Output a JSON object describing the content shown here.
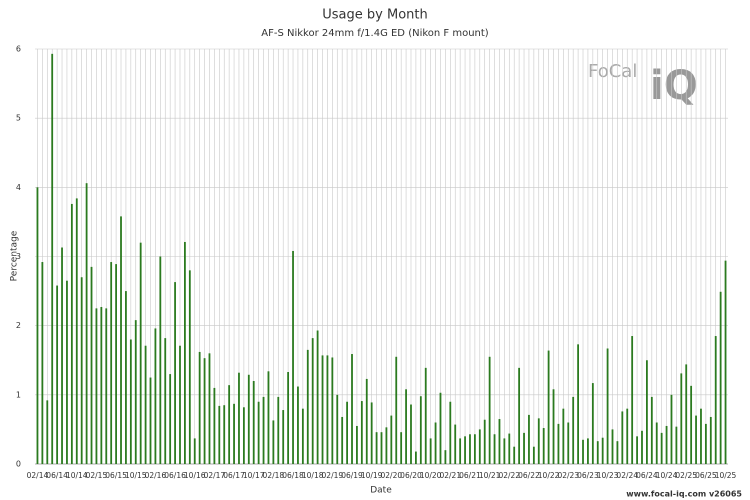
{
  "chart_data": {
    "type": "bar",
    "title": "Usage by Month",
    "subtitle": "AF-S Nikkor 24mm f/1.4G ED (Nikon F mount)",
    "x_label": "Date",
    "y_label": "Percentage",
    "footer": "www.focal-iq.com  v26065",
    "logo": [
      "FoCal",
      "iQ"
    ],
    "color": "#2b7a1f",
    "grid": true,
    "ylim": [
      0,
      6
    ],
    "yticks": [
      0,
      1,
      2,
      3,
      4,
      5,
      6
    ],
    "categories": [
      "02/14",
      null,
      null,
      null,
      "06/14",
      null,
      null,
      null,
      "10/14",
      null,
      null,
      null,
      "02/15",
      null,
      null,
      null,
      "06/15",
      null,
      null,
      null,
      "10/15",
      null,
      null,
      null,
      "02/16",
      null,
      null,
      null,
      "06/16",
      null,
      null,
      null,
      "10/16",
      null,
      null,
      null,
      "02/17",
      null,
      null,
      null,
      "06/17",
      null,
      null,
      null,
      "10/17",
      null,
      null,
      null,
      "02/18",
      null,
      null,
      null,
      "06/18",
      null,
      null,
      null,
      "10/18",
      null,
      null,
      null,
      "02/19",
      null,
      null,
      null,
      "06/19",
      null,
      null,
      null,
      "10/19",
      null,
      null,
      null,
      "02/20",
      null,
      null,
      null,
      "06/20",
      null,
      null,
      null,
      "10/20",
      null,
      null,
      null,
      "02/21",
      null,
      null,
      null,
      "06/21",
      null,
      null,
      null,
      "10/21",
      null,
      null,
      null,
      "02/22",
      null,
      null,
      null,
      "06/22",
      null,
      null,
      null,
      "10/22",
      null,
      null,
      null,
      "02/23",
      null,
      null,
      null,
      "06/23",
      null,
      null,
      null,
      "10/23",
      null,
      null,
      null,
      "02/24",
      null,
      null,
      null,
      "06/24",
      null,
      null,
      null,
      "10/24",
      null,
      null,
      null,
      "02/25",
      null,
      null,
      null,
      "06/25",
      null,
      null,
      null,
      "10/25"
    ],
    "values": [
      4.0,
      2.92,
      0.92,
      5.93,
      2.58,
      3.13,
      2.65,
      3.76,
      3.84,
      2.7,
      4.06,
      2.85,
      2.25,
      2.27,
      2.25,
      2.92,
      2.89,
      3.58,
      2.5,
      1.8,
      2.08,
      3.2,
      1.71,
      1.25,
      1.96,
      3.0,
      1.82,
      1.3,
      2.63,
      1.71,
      3.21,
      2.8,
      0.37,
      1.62,
      1.53,
      1.6,
      1.1,
      0.84,
      0.85,
      1.14,
      0.87,
      1.32,
      0.82,
      1.29,
      1.2,
      0.9,
      0.97,
      1.34,
      0.63,
      0.97,
      0.78,
      1.33,
      3.08,
      1.12,
      0.8,
      1.65,
      1.82,
      1.93,
      1.57,
      1.57,
      1.54,
      1.0,
      0.68,
      0.9,
      1.59,
      0.55,
      0.91,
      1.23,
      0.89,
      0.46,
      0.46,
      0.53,
      0.7,
      1.55,
      0.46,
      1.08,
      0.86,
      0.18,
      0.98,
      1.39,
      0.37,
      0.6,
      1.03,
      0.2,
      0.9,
      0.57,
      0.37,
      0.4,
      0.43,
      0.43,
      0.5,
      0.64,
      1.55,
      0.43,
      0.65,
      0.37,
      0.44,
      0.25,
      1.39,
      0.45,
      0.71,
      0.25,
      0.66,
      0.52,
      1.64,
      1.08,
      0.58,
      0.8,
      0.6,
      0.97,
      1.73,
      0.35,
      0.37,
      1.17,
      0.33,
      0.38,
      1.67,
      0.5,
      0.33,
      0.76,
      0.8,
      1.85,
      0.4,
      0.48,
      1.5,
      0.97,
      0.6,
      0.45,
      0.55,
      1.0,
      0.54,
      1.31,
      1.44,
      1.13,
      0.7,
      0.8,
      0.58,
      0.68,
      1.85,
      2.49,
      2.94
    ]
  }
}
